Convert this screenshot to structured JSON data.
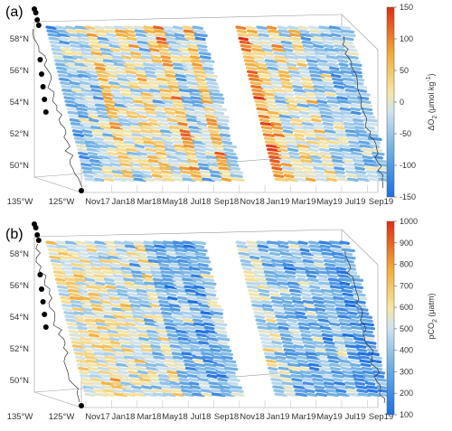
{
  "colors": {
    "low": "#1f6fe0",
    "mid_low": "#9cc8e6",
    "mid": "#f2f2f2",
    "mid_high": "#f5c04a",
    "high": "#e0321a",
    "coast": "#333333",
    "frame": "#9a9a9a"
  },
  "chart_data": [
    {
      "type": "heatmap",
      "panel": "(a)",
      "colorbar_label": "ΔO2 (μmol kg-1)",
      "colorbar_label_main": "ΔO",
      "colorbar_sub": "2",
      "colorbar_unit": " (μmol kg",
      "colorbar_sup": "-1",
      "colorbar_close": ")",
      "colorbar_ticks": [
        "150",
        "100",
        "50",
        "0",
        "-50",
        "-100",
        "-150"
      ],
      "clim": [
        -150,
        150
      ],
      "lat_ticks": [
        "58°N",
        "56°N",
        "54°N",
        "52°N",
        "50°N"
      ],
      "lon_ticks": [
        "135°W",
        "125°W"
      ],
      "time_ticks": [
        "Nov17",
        "Jan18",
        "Mar18",
        "May18",
        "Jul18",
        "Sep18",
        "Nov18",
        "Jan19",
        "Mar19",
        "May19",
        "Jul19",
        "Sep19"
      ],
      "crossings": [
        {
          "t": "Oct17",
          "v": -60
        },
        {
          "t": "Nov17a",
          "v": -45
        },
        {
          "t": "Nov17b",
          "v": -40
        },
        {
          "t": "Dec17a",
          "v": -30
        },
        {
          "t": "Dec17b",
          "v": 40
        },
        {
          "t": "Jan18a",
          "v": -20
        },
        {
          "t": "Jan18b",
          "v": -10
        },
        {
          "t": "Feb18a",
          "v": 10
        },
        {
          "t": "Feb18b",
          "v": 30
        },
        {
          "t": "Mar18a",
          "v": -40
        },
        {
          "t": "Mar18b",
          "v": 20
        },
        {
          "t": "Apr18a",
          "v": 60
        },
        {
          "t": "Apr18b",
          "v": -50
        },
        {
          "t": "May18a",
          "v": -40
        },
        {
          "t": "May18b",
          "v": 50
        },
        {
          "t": "Jun18",
          "v": -50
        },
        {
          "t": "Jan19a",
          "v": 90
        },
        {
          "t": "Jan19b",
          "v": 40
        },
        {
          "t": "Feb19",
          "v": -30
        },
        {
          "t": "Mar19a",
          "v": 30
        },
        {
          "t": "Mar19b",
          "v": -20
        },
        {
          "t": "Apr19",
          "v": 10
        },
        {
          "t": "May19a",
          "v": -50
        },
        {
          "t": "May19b",
          "v": -20
        },
        {
          "t": "Jun19",
          "v": -60
        },
        {
          "t": "Jul19",
          "v": -50
        },
        {
          "t": "Aug19",
          "v": -55
        }
      ]
    },
    {
      "type": "heatmap",
      "panel": "(b)",
      "colorbar_label": "pCO2 (μatm)",
      "colorbar_label_main": "pCO",
      "colorbar_sub": "2",
      "colorbar_unit": " (μatm)",
      "colorbar_ticks": [
        "1000",
        "900",
        "800",
        "700",
        "600",
        "500",
        "400",
        "300",
        "200",
        "100"
      ],
      "clim": [
        100,
        1000
      ],
      "lat_ticks": [
        "58°N",
        "56°N",
        "54°N",
        "52°N",
        "50°N"
      ],
      "lon_ticks": [
        "135°W",
        "125°W"
      ],
      "time_ticks": [
        "Nov17",
        "Jan18",
        "Mar18",
        "May18",
        "Jul18",
        "Sep18",
        "Nov18",
        "Jan19",
        "Mar19",
        "May19",
        "Jul19",
        "Sep19"
      ],
      "crossings": [
        {
          "t": "Oct17",
          "v": 560
        },
        {
          "t": "Nov17a",
          "v": 580
        },
        {
          "t": "Nov17b",
          "v": 590
        },
        {
          "t": "Dec17a",
          "v": 600
        },
        {
          "t": "Dec17b",
          "v": 560
        },
        {
          "t": "Jan18a",
          "v": 560
        },
        {
          "t": "Jan18b",
          "v": 520
        },
        {
          "t": "Feb18a",
          "v": 480
        },
        {
          "t": "Feb18b",
          "v": 420
        },
        {
          "t": "Mar18a",
          "v": 560
        },
        {
          "t": "Mar18b",
          "v": 380
        },
        {
          "t": "Apr18a",
          "v": 300
        },
        {
          "t": "Apr18b",
          "v": 420
        },
        {
          "t": "May18a",
          "v": 300
        },
        {
          "t": "May18b",
          "v": 260
        },
        {
          "t": "Jun18",
          "v": 420
        },
        {
          "t": "Jan19a",
          "v": 520
        },
        {
          "t": "Jan19b",
          "v": 470
        },
        {
          "t": "Feb19",
          "v": 380
        },
        {
          "t": "Mar19a",
          "v": 380
        },
        {
          "t": "Mar19b",
          "v": 300
        },
        {
          "t": "Apr19",
          "v": 430
        },
        {
          "t": "May19a",
          "v": 280
        },
        {
          "t": "May19b",
          "v": 420
        },
        {
          "t": "Jun19",
          "v": 270
        },
        {
          "t": "Jul19",
          "v": 260
        },
        {
          "t": "Aug19",
          "v": 300
        }
      ]
    }
  ]
}
